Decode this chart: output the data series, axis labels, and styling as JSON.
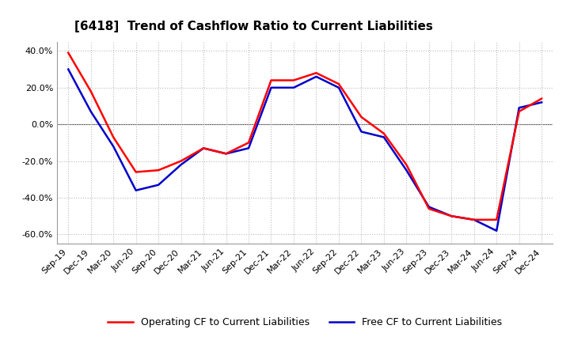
{
  "title": "[6418]  Trend of Cashflow Ratio to Current Liabilities",
  "x_labels": [
    "Sep-19",
    "Dec-19",
    "Mar-20",
    "Jun-20",
    "Sep-20",
    "Dec-20",
    "Mar-21",
    "Jun-21",
    "Sep-21",
    "Dec-21",
    "Mar-22",
    "Jun-22",
    "Sep-22",
    "Dec-22",
    "Mar-23",
    "Jun-23",
    "Sep-23",
    "Dec-23",
    "Mar-24",
    "Jun-24",
    "Sep-24",
    "Dec-24"
  ],
  "operating_cf": [
    0.39,
    0.18,
    -0.07,
    -0.26,
    -0.25,
    -0.2,
    -0.13,
    -0.16,
    -0.1,
    0.24,
    0.24,
    0.28,
    0.22,
    0.04,
    -0.05,
    -0.22,
    -0.46,
    -0.5,
    -0.52,
    -0.52,
    0.07,
    0.14
  ],
  "free_cf": [
    0.3,
    0.07,
    -0.12,
    -0.36,
    -0.33,
    -0.22,
    -0.13,
    -0.16,
    -0.13,
    0.2,
    0.2,
    0.26,
    0.2,
    -0.04,
    -0.07,
    -0.25,
    -0.45,
    -0.5,
    -0.52,
    -0.58,
    0.09,
    0.12
  ],
  "ylim": [
    -0.65,
    0.45
  ],
  "yticks": [
    -0.6,
    -0.4,
    -0.2,
    0.0,
    0.2,
    0.4
  ],
  "operating_color": "#ff0000",
  "free_color": "#0000cc",
  "background_color": "#ffffff",
  "grid_color": "#bbbbbb",
  "line_width": 1.8,
  "legend_operating": "Operating CF to Current Liabilities",
  "legend_free": "Free CF to Current Liabilities",
  "title_fontsize": 11,
  "tick_fontsize": 8
}
